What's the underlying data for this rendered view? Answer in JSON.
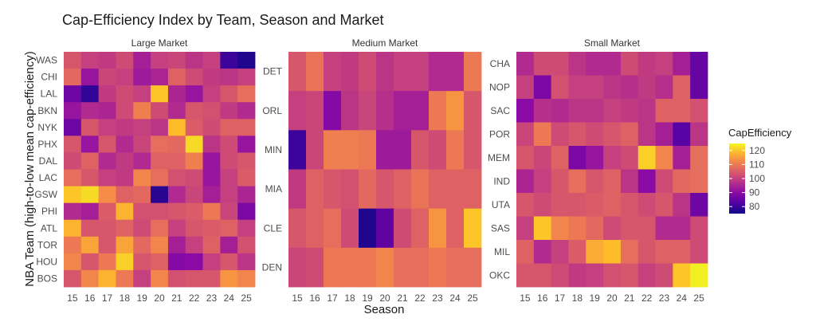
{
  "chart_data": {
    "type": "heatmap",
    "title": "Cap-Efficiency Index by Team, Season and Market",
    "xlabel": "Season",
    "ylabel": "NBA Team (high-to-low mean cap-efficiency)",
    "x": [
      "15",
      "16",
      "17",
      "18",
      "19",
      "20",
      "21",
      "22",
      "23",
      "24",
      "25"
    ],
    "value_range": [
      75,
      125
    ],
    "legend": {
      "title": "CapEfficiency",
      "ticks": [
        80,
        90,
        100,
        110,
        120
      ],
      "position": "right"
    },
    "colormap": "plasma",
    "panels": [
      {
        "name": "Large Market",
        "teams": [
          "WAS",
          "CHI",
          "LAL",
          "BKN",
          "NYK",
          "PHX",
          "DAL",
          "LAC",
          "GSW",
          "PHI",
          "ATL",
          "TOR",
          "HOU",
          "BOS"
        ],
        "values": [
          [
            104,
            100,
            99,
            102,
            94,
            100,
            101,
            98,
            100,
            80,
            77
          ],
          [
            107,
            92,
            101,
            100,
            93,
            95,
            106,
            102,
            99,
            98,
            100
          ],
          [
            86,
            79,
            99,
            102,
            100,
            120,
            95,
            92,
            100,
            104,
            108
          ],
          [
            92,
            96,
            95,
            102,
            111,
            102,
            96,
            104,
            103,
            99,
            96
          ],
          [
            86,
            104,
            100,
            99,
            100,
            98,
            119,
            105,
            102,
            106,
            106
          ],
          [
            104,
            92,
            104,
            96,
            101,
            108,
            107,
            122,
            98,
            102,
            92
          ],
          [
            102,
            106,
            96,
            99,
            96,
            106,
            106,
            111,
            92,
            102,
            104
          ],
          [
            108,
            104,
            100,
            99,
            112,
            108,
            103,
            102,
            92,
            100,
            105
          ],
          [
            120,
            122,
            113,
            106,
            107,
            78,
            96,
            101,
            94,
            100,
            95
          ],
          [
            96,
            94,
            105,
            118,
            103,
            103,
            104,
            105,
            110,
            101,
            88
          ],
          [
            118,
            104,
            104,
            106,
            102,
            108,
            100,
            104,
            105,
            106,
            100
          ],
          [
            110,
            116,
            104,
            116,
            107,
            112,
            94,
            100,
            106,
            94,
            103
          ],
          [
            112,
            104,
            110,
            121,
            104,
            106,
            89,
            90,
            100,
            104,
            98
          ],
          [
            104,
            112,
            118,
            110,
            100,
            112,
            103,
            104,
            104,
            114,
            112
          ]
        ]
      },
      {
        "name": "Medium Market",
        "teams": [
          "DET",
          "ORL",
          "MIN",
          "MIA",
          "CLE",
          "DEN"
        ],
        "values": [
          [
            104,
            109,
            100,
            99,
            102,
            98,
            100,
            100,
            96,
            96,
            110
          ],
          [
            100,
            101,
            89,
            98,
            101,
            97,
            94,
            94,
            110,
            114,
            104
          ],
          [
            80,
            101,
            111,
            111,
            110,
            93,
            93,
            104,
            102,
            110,
            104
          ],
          [
            99,
            106,
            104,
            103,
            107,
            104,
            106,
            109,
            106,
            106,
            106
          ],
          [
            104,
            106,
            108,
            102,
            77,
            84,
            102,
            106,
            114,
            106,
            120
          ],
          [
            101,
            102,
            110,
            110,
            110,
            112,
            108,
            108,
            110,
            108,
            108
          ]
        ]
      },
      {
        "name": "Small Market",
        "teams": [
          "CHA",
          "NOP",
          "SAC",
          "POR",
          "MEM",
          "IND",
          "UTA",
          "SAS",
          "MIL",
          "OKC"
        ],
        "values": [
          [
            96,
            102,
            102,
            98,
            96,
            96,
            102,
            99,
            100,
            94,
            85
          ],
          [
            100,
            88,
            103,
            100,
            100,
            98,
            97,
            99,
            97,
            106,
            85
          ],
          [
            90,
            97,
            96,
            98,
            98,
            100,
            99,
            98,
            106,
            106,
            103
          ],
          [
            101,
            110,
            102,
            104,
            102,
            104,
            106,
            98,
            94,
            83,
            98
          ],
          [
            104,
            101,
            106,
            88,
            92,
            100,
            102,
            121,
            112,
            94,
            108
          ],
          [
            95,
            100,
            104,
            108,
            104,
            106,
            98,
            90,
            102,
            107,
            108
          ],
          [
            104,
            102,
            104,
            104,
            105,
            106,
            104,
            102,
            104,
            98,
            86
          ],
          [
            100,
            120,
            112,
            110,
            107,
            102,
            104,
            104,
            96,
            96,
            102
          ],
          [
            106,
            96,
            100,
            105,
            117,
            119,
            108,
            104,
            106,
            106,
            102
          ],
          [
            104,
            104,
            102,
            99,
            100,
            103,
            104,
            100,
            102,
            120,
            124
          ]
        ]
      }
    ]
  }
}
